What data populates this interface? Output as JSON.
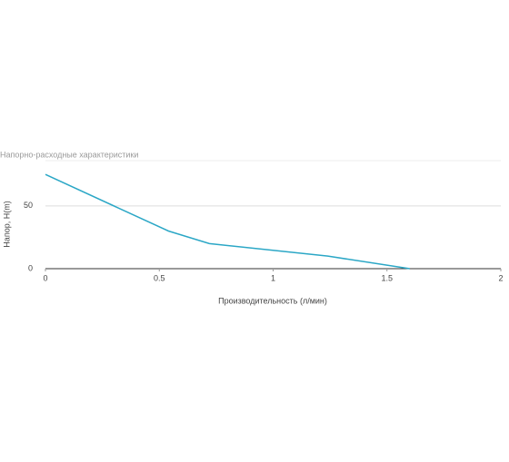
{
  "chart_data": {
    "type": "line",
    "title": "Напорно-расходные характеристики",
    "x_label": "Производительность (л/мин)",
    "y_label": "Напор, H(m)",
    "x": [
      0,
      0.54,
      0.72,
      1.24,
      1.6
    ],
    "series": [
      {
        "name": "H",
        "color": "#2ba7c6",
        "values": [
          75,
          30,
          20,
          10,
          0
        ]
      }
    ],
    "xlim": [
      0,
      2
    ],
    "xticks": [
      0,
      0.5,
      1,
      1.5,
      2
    ],
    "ylim": [
      0,
      86
    ],
    "yticks": [
      0,
      50
    ],
    "grid": true
  }
}
